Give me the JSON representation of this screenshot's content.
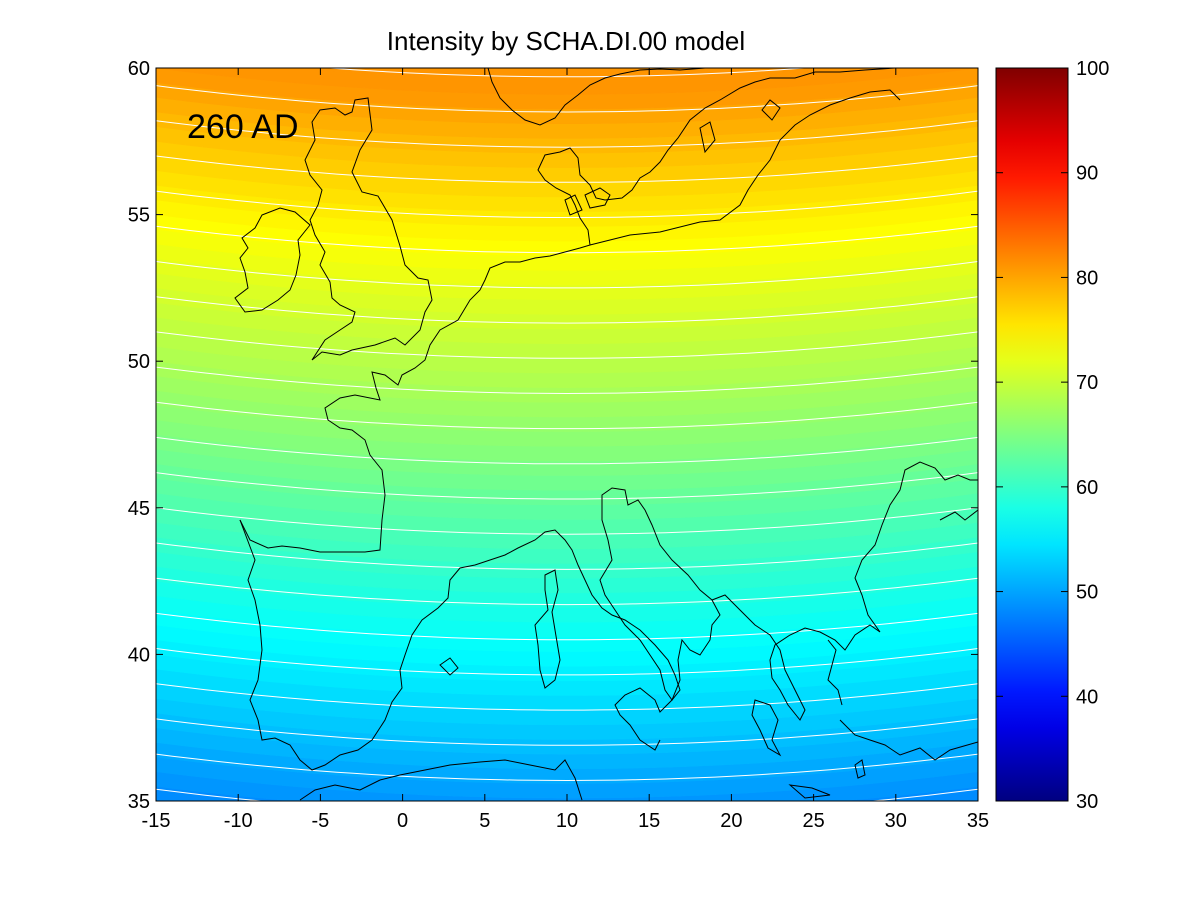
{
  "chart_data": {
    "type": "heatmap",
    "title": "Intensity by SCHA.DI.00 model",
    "annotation": "260 AD",
    "xlim": [
      -15,
      35
    ],
    "ylim": [
      35,
      60
    ],
    "x_ticks": [
      "-15",
      "-10",
      "-5",
      "0",
      "5",
      "10",
      "15",
      "20",
      "25",
      "30",
      "35"
    ],
    "y_ticks": [
      "35",
      "40",
      "45",
      "50",
      "55",
      "60"
    ],
    "colorbar": {
      "range": [
        30,
        100
      ],
      "ticks": [
        "30",
        "40",
        "50",
        "60",
        "70",
        "80",
        "90",
        "100"
      ],
      "colormap": "jet"
    },
    "grid": false,
    "overlay": "coastlines of Europe and North Africa",
    "contour_color": "#ffffff",
    "field_samples": [
      {
        "lat": 60,
        "value": 81
      },
      {
        "lat": 57.5,
        "value": 77.5
      },
      {
        "lat": 55,
        "value": 74
      },
      {
        "lat": 52.5,
        "value": 71
      },
      {
        "lat": 50,
        "value": 68
      },
      {
        "lat": 47.5,
        "value": 65
      },
      {
        "lat": 45,
        "value": 61.5
      },
      {
        "lat": 42.5,
        "value": 58
      },
      {
        "lat": 40,
        "value": 55
      },
      {
        "lat": 37.5,
        "value": 51.5
      },
      {
        "lat": 35,
        "value": 48
      }
    ]
  }
}
